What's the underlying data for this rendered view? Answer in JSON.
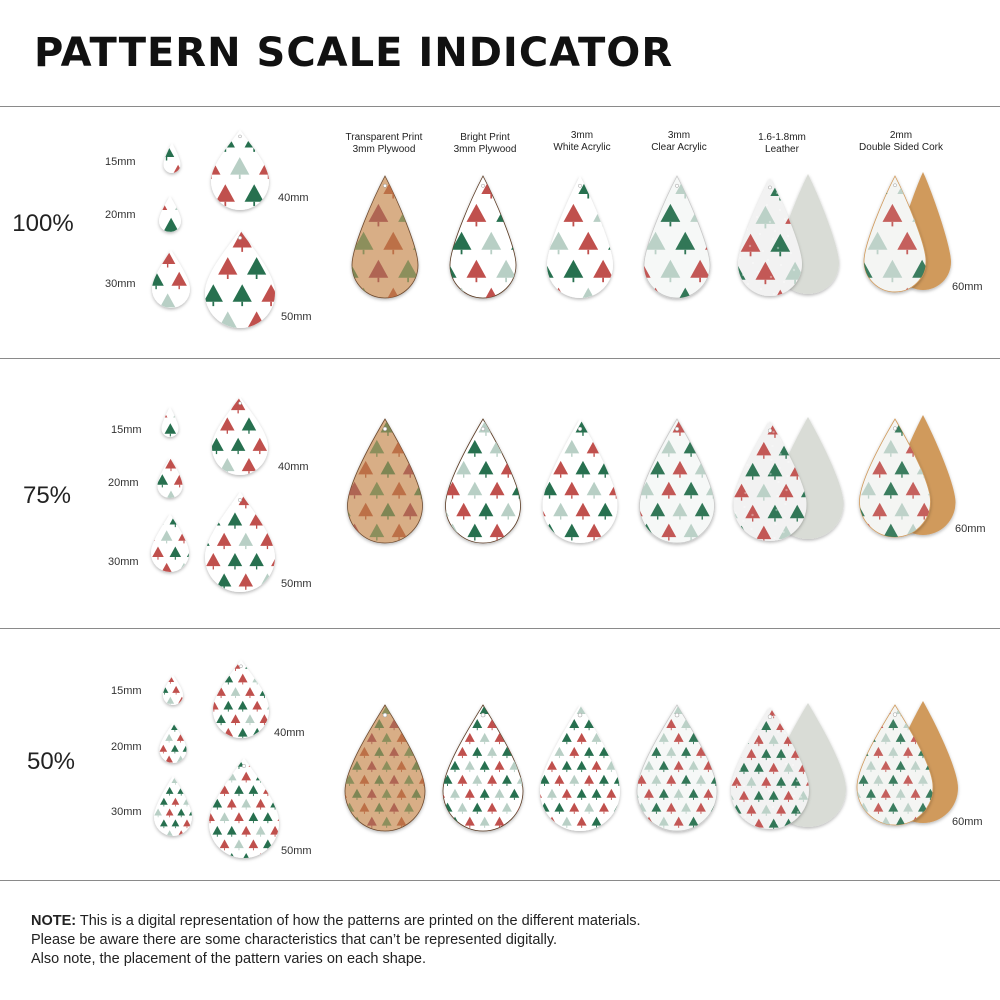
{
  "title": "PATTERN SCALE INDICATOR",
  "materials": [
    {
      "line1": "Transparent Print",
      "line2": "3mm Plywood"
    },
    {
      "line1": "Bright Print",
      "line2": "3mm Plywood"
    },
    {
      "line1": "3mm",
      "line2": "White Acrylic"
    },
    {
      "line1": "3mm",
      "line2": "Clear Acrylic"
    },
    {
      "line1": "1.6-1.8mm",
      "line2": "Leather"
    },
    {
      "line1": "2mm",
      "line2": "Double Sided Cork"
    }
  ],
  "sizes": {
    "s15": "15mm",
    "s20": "20mm",
    "s30": "30mm",
    "s40": "40mm",
    "s50": "50mm",
    "s60": "60mm"
  },
  "sections": [
    {
      "percent": "100%",
      "scale": 1.0
    },
    {
      "percent": "75%",
      "scale": 0.75
    },
    {
      "percent": "50%",
      "scale": 0.5
    }
  ],
  "colors": {
    "red": "#c0504d",
    "green": "#27704f",
    "sage": "#b8cfc5",
    "wood": "#d8ae86",
    "cork": "#d09a5c",
    "suede": "#d9dcd6"
  },
  "note": {
    "label": "NOTE:",
    "line1": " This is a digital representation of how the patterns are printed on the different materials.",
    "line2": "Please be aware there are some characteristics that can’t be represented digitally.",
    "line3": "Also note, the placement of the pattern varies on each shape."
  }
}
